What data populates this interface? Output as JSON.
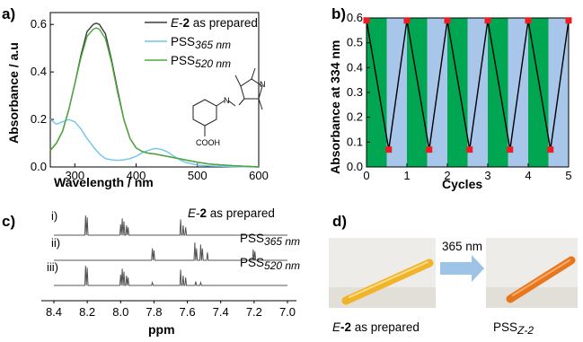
{
  "colors": {
    "absorbance_as_prepared": "#3a3a3a",
    "absorbance_pss365": "#6cc6ec",
    "absorbance_pss520": "#4cab3a",
    "cycle_band_green": "#00a651",
    "cycle_band_blue": "#a8c5ea",
    "cycle_marker": "#ee1c25",
    "nmr_trace": "#555555",
    "arrow": "#9dc3e6",
    "tube_yellow": "#f0b32a",
    "tube_orange": "#e8761f"
  },
  "panels": {
    "a": "a)",
    "b": "b)",
    "c": "c)",
    "d": "d)"
  },
  "chart_data": [
    {
      "panel": "a",
      "type": "line",
      "xlabel": "Wavelength / nm",
      "ylabel": "Absorbance / a.u",
      "xlim": [
        260,
        600
      ],
      "ylim": [
        0,
        0.65
      ],
      "xticks": [
        "300",
        "400",
        "500",
        "600"
      ],
      "yticks": [
        "0.0",
        "0.2",
        "0.4",
        "0.6"
      ],
      "series": [
        {
          "name": "E-2 as prepared",
          "name_italic": "E",
          "name_bold": "2",
          "name_rest": " as prepared",
          "x": [
            260,
            270,
            280,
            290,
            300,
            310,
            320,
            330,
            335,
            340,
            350,
            360,
            370,
            380,
            390,
            400,
            410,
            420,
            430,
            440,
            450,
            460,
            480,
            500,
            520,
            560,
            600
          ],
          "y": [
            0.07,
            0.1,
            0.15,
            0.24,
            0.35,
            0.47,
            0.57,
            0.6,
            0.605,
            0.6,
            0.56,
            0.45,
            0.32,
            0.2,
            0.12,
            0.08,
            0.065,
            0.058,
            0.055,
            0.05,
            0.045,
            0.04,
            0.03,
            0.02,
            0.012,
            0.005,
            0.0
          ]
        },
        {
          "name": "PSS365 nm",
          "name_main": "PSS",
          "name_sub": "365 nm",
          "x": [
            260,
            270,
            280,
            290,
            300,
            310,
            320,
            330,
            340,
            350,
            360,
            370,
            380,
            390,
            400,
            410,
            420,
            430,
            440,
            450,
            460,
            470,
            480,
            500,
            520,
            560,
            600
          ],
          "y": [
            0.2,
            0.18,
            0.19,
            0.2,
            0.19,
            0.16,
            0.12,
            0.085,
            0.055,
            0.035,
            0.03,
            0.028,
            0.03,
            0.035,
            0.045,
            0.06,
            0.07,
            0.078,
            0.075,
            0.065,
            0.048,
            0.032,
            0.02,
            0.008,
            0.004,
            0.001,
            0.0
          ]
        },
        {
          "name": "PSS520 nm",
          "name_main": "PSS",
          "name_sub": "520 nm",
          "x": [
            260,
            270,
            280,
            290,
            300,
            310,
            320,
            330,
            335,
            340,
            350,
            360,
            370,
            380,
            390,
            400,
            410,
            420,
            430,
            440,
            450,
            460,
            480,
            500,
            520,
            560,
            600
          ],
          "y": [
            0.07,
            0.1,
            0.15,
            0.24,
            0.35,
            0.46,
            0.55,
            0.58,
            0.585,
            0.58,
            0.54,
            0.44,
            0.31,
            0.2,
            0.12,
            0.08,
            0.065,
            0.058,
            0.055,
            0.05,
            0.045,
            0.04,
            0.03,
            0.02,
            0.012,
            0.005,
            0.0
          ]
        }
      ],
      "structure_labels": {
        "substituent": "COOH",
        "azo": "N",
        "pyrazole": "N"
      }
    },
    {
      "panel": "b",
      "type": "line",
      "xlabel": "Cycles",
      "ylabel": "Absorbance at 334 nm",
      "xlim": [
        0,
        5
      ],
      "ylim": [
        0,
        0.6
      ],
      "xticks": [
        "0",
        "1",
        "2",
        "3",
        "4",
        "5"
      ],
      "yticks": [
        "0.0",
        "0.1",
        "0.2",
        "0.3",
        "0.4",
        "0.5",
        "0.6"
      ],
      "x": [
        0,
        0.55,
        1,
        1.55,
        2,
        2.55,
        3,
        3.55,
        4,
        4.55,
        5
      ],
      "y": [
        0.59,
        0.07,
        0.59,
        0.07,
        0.59,
        0.07,
        0.59,
        0.07,
        0.59,
        0.07,
        0.59
      ],
      "bands": [
        "green",
        "blue",
        "green",
        "blue",
        "green",
        "blue",
        "green",
        "blue",
        "green",
        "blue"
      ]
    },
    {
      "panel": "c",
      "type": "line",
      "xlabel": "ppm",
      "x_reversed": true,
      "xlim": [
        7.0,
        8.4
      ],
      "xticks": [
        "8.4",
        "8.2",
        "8.0",
        "7.8",
        "7.6",
        "7.4",
        "7.2",
        "7.0"
      ],
      "spectra": [
        {
          "label": "i)",
          "name": "E-2 as prepared",
          "name_italic": "E",
          "name_bold": "2",
          "name_rest": " as prepared",
          "peaks": [
            [
              8.21,
              1.0
            ],
            [
              8.2,
              0.9
            ],
            [
              8.0,
              0.55
            ],
            [
              7.99,
              0.85
            ],
            [
              7.98,
              0.7
            ],
            [
              7.965,
              0.5
            ],
            [
              7.955,
              0.4
            ],
            [
              7.64,
              0.8
            ],
            [
              7.625,
              0.5
            ],
            [
              7.61,
              0.4
            ]
          ]
        },
        {
          "label": "ii)",
          "name": "PSS365 nm",
          "name_main": "PSS",
          "name_sub": "365 nm",
          "peaks": [
            [
              7.81,
              0.6
            ],
            [
              7.8,
              0.5
            ],
            [
              7.555,
              0.9
            ],
            [
              7.545,
              0.6
            ],
            [
              7.52,
              0.8
            ],
            [
              7.51,
              0.6
            ],
            [
              7.48,
              0.4
            ],
            [
              7.205,
              0.55
            ],
            [
              7.195,
              0.45
            ]
          ]
        },
        {
          "label": "iii)",
          "name": "PSS520 nm",
          "name_main": "PSS",
          "name_sub": "520 nm",
          "peaks": [
            [
              8.21,
              1.0
            ],
            [
              8.2,
              0.9
            ],
            [
              8.0,
              0.55
            ],
            [
              7.99,
              0.85
            ],
            [
              7.98,
              0.7
            ],
            [
              7.965,
              0.5
            ],
            [
              7.955,
              0.4
            ],
            [
              7.81,
              0.15
            ],
            [
              7.64,
              0.8
            ],
            [
              7.625,
              0.5
            ],
            [
              7.61,
              0.4
            ],
            [
              7.55,
              0.2
            ],
            [
              7.52,
              0.15
            ]
          ]
        }
      ]
    }
  ],
  "photo": {
    "arrow_label": "365 nm",
    "left_caption_italic": "E",
    "left_caption_bold": "-2",
    "left_caption_rest": " as prepared",
    "right_caption_main": "PSS",
    "right_caption_sub": "Z-2"
  }
}
